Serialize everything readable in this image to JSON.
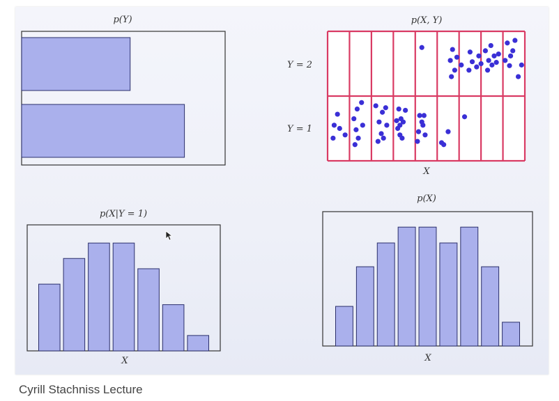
{
  "caption": "Cyrill Stachniss Lecture",
  "colors": {
    "bar_fill": "#aab0ec",
    "bar_stroke": "#2b2f6b",
    "grid_red": "#d93a63",
    "point": "#3a2fd6",
    "frame": "#333333"
  },
  "chart_data": [
    {
      "id": "pY",
      "type": "bar",
      "orientation": "horizontal",
      "title": "p(Y)",
      "categories": [
        "Y = 2",
        "Y = 1"
      ],
      "values": [
        0.4,
        0.6
      ],
      "xlim": [
        0,
        0.75
      ]
    },
    {
      "id": "pXY",
      "type": "scatter",
      "title": "p(X, Y)",
      "xlabel": "X",
      "ylabel_ticks": [
        "Y = 2",
        "Y = 1"
      ],
      "x_bins": 9,
      "y_bins": 2,
      "counts": {
        "Y = 2": [
          0,
          0,
          0,
          1,
          6,
          6,
          8,
          6,
          2
        ],
        "Y = 1": [
          5,
          7,
          8,
          9,
          7,
          3,
          1,
          0,
          0
        ]
      },
      "points": [
        [
          4.3,
          1.75
        ],
        [
          5.6,
          1.55
        ],
        [
          5.8,
          1.4
        ],
        [
          5.65,
          1.3
        ],
        [
          5.9,
          1.6
        ],
        [
          6.1,
          1.48
        ],
        [
          5.7,
          1.72
        ],
        [
          6.5,
          1.68
        ],
        [
          6.6,
          1.53
        ],
        [
          6.8,
          1.45
        ],
        [
          6.45,
          1.4
        ],
        [
          6.9,
          1.62
        ],
        [
          7.0,
          1.5
        ],
        [
          7.2,
          1.7
        ],
        [
          7.35,
          1.55
        ],
        [
          7.5,
          1.48
        ],
        [
          7.6,
          1.62
        ],
        [
          7.3,
          1.4
        ],
        [
          7.8,
          1.65
        ],
        [
          7.45,
          1.78
        ],
        [
          7.7,
          1.52
        ],
        [
          8.1,
          1.55
        ],
        [
          8.3,
          1.47
        ],
        [
          8.45,
          1.7
        ],
        [
          8.2,
          1.82
        ],
        [
          8.55,
          1.86
        ],
        [
          8.35,
          1.62
        ],
        [
          8.7,
          1.3
        ],
        [
          8.85,
          1.48
        ],
        [
          0.3,
          0.55
        ],
        [
          0.55,
          0.5
        ],
        [
          0.25,
          0.35
        ],
        [
          0.8,
          0.4
        ],
        [
          0.45,
          0.72
        ],
        [
          1.2,
          0.65
        ],
        [
          1.35,
          0.8
        ],
        [
          1.55,
          0.9
        ],
        [
          1.4,
          0.35
        ],
        [
          1.25,
          0.25
        ],
        [
          1.6,
          0.55
        ],
        [
          1.3,
          0.48
        ],
        [
          2.2,
          0.85
        ],
        [
          2.35,
          0.6
        ],
        [
          2.5,
          0.75
        ],
        [
          2.3,
          0.3
        ],
        [
          2.55,
          0.35
        ],
        [
          2.7,
          0.55
        ],
        [
          2.45,
          0.42
        ],
        [
          2.65,
          0.82
        ],
        [
          3.2,
          0.5
        ],
        [
          3.35,
          0.65
        ],
        [
          3.3,
          0.4
        ],
        [
          3.45,
          0.6
        ],
        [
          3.25,
          0.8
        ],
        [
          3.55,
          0.78
        ],
        [
          3.4,
          0.35
        ],
        [
          3.3,
          0.55
        ],
        [
          3.15,
          0.62
        ],
        [
          4.15,
          0.45
        ],
        [
          4.35,
          0.55
        ],
        [
          4.2,
          0.7
        ],
        [
          4.4,
          0.7
        ],
        [
          4.1,
          0.3
        ],
        [
          4.3,
          0.6
        ],
        [
          4.45,
          0.4
        ],
        [
          5.3,
          0.25
        ],
        [
          5.5,
          0.45
        ],
        [
          5.2,
          0.28
        ],
        [
          6.25,
          0.68
        ]
      ],
      "xlim": [
        0,
        9
      ],
      "ylim": [
        0,
        2
      ]
    },
    {
      "id": "pXgY1",
      "type": "bar",
      "title": "p(X|Y = 1)",
      "xlabel": "X",
      "values": [
        0.13,
        0.18,
        0.21,
        0.21,
        0.16,
        0.09,
        0.03
      ],
      "ylim": [
        0,
        0.24
      ]
    },
    {
      "id": "pX",
      "type": "bar",
      "title": "p(X)",
      "xlabel": "X",
      "values": [
        5,
        10,
        13,
        15,
        15,
        13,
        15,
        10,
        3
      ],
      "ylim": [
        0,
        16.6
      ]
    }
  ]
}
